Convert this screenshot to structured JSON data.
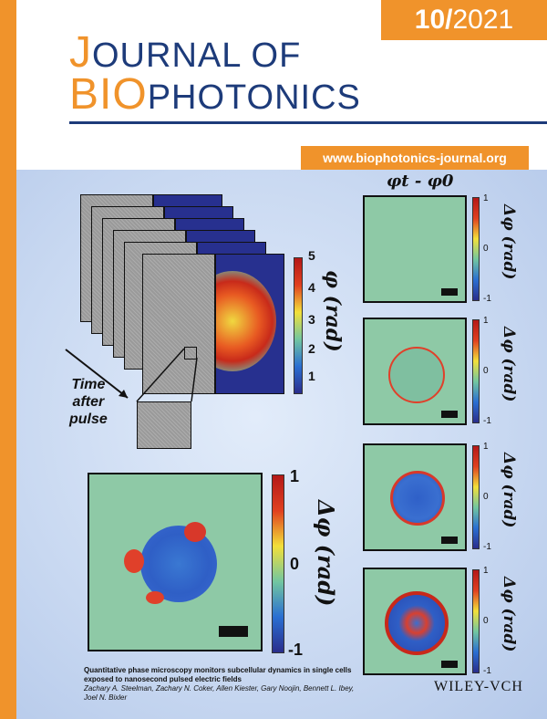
{
  "issue": {
    "number": "10/",
    "year": "2021"
  },
  "title": {
    "line1_initial": "J",
    "line1_rest": "OURNAL OF",
    "line2_bio": "BIO",
    "line2_rest": "PHOTONICS"
  },
  "url": "www.biophotonics-journal.org",
  "figure": {
    "time_label_lines": [
      "Time",
      "after",
      "pulse"
    ],
    "stack_colorbar": {
      "label": "φ (rad)",
      "ticks": [
        "5",
        "4",
        "3",
        "2",
        "1"
      ]
    },
    "large_colorbar": {
      "label": "Δφ (rad)",
      "ticks": [
        "1",
        "0",
        "-1"
      ]
    },
    "small_colorbar": {
      "label": "Δφ (rad)",
      "ticks": [
        "1",
        "0",
        "-1"
      ]
    },
    "header_formula": "φt - φ0"
  },
  "caption": {
    "title": "Quantitative phase microscopy monitors subcellular dynamics in single cells exposed to nanosecond pulsed electric fields",
    "authors": "Zachary A. Steelman, Zachary N. Coker, Allen Kiester, Gary Noojin, Bennett L. Ibey, Joel N. Bixler"
  },
  "publisher": "WILEY-VCH",
  "colors": {
    "orange": "#f0932b",
    "navy": "#1d3b7a",
    "phase_blue": "#27308f",
    "field_green": "#8ec9a6"
  }
}
